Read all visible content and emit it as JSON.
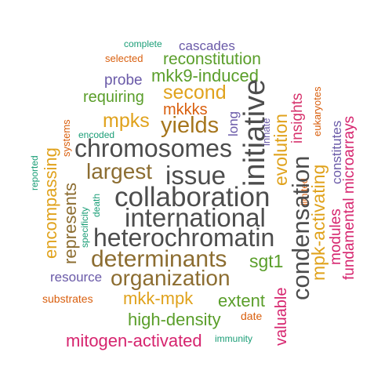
{
  "palette": {
    "dark_gray": "#4d4d4d",
    "brown": "#8c6d31",
    "gold": "#e0a21c",
    "green": "#5a9e2a",
    "magenta": "#d6336c",
    "pink": "#d6246e",
    "purple": "#6a5aa8",
    "orange": "#d95f0e",
    "teal": "#1b9e77",
    "light_brown": "#a6761d"
  },
  "words": [
    "complete",
    "cascades",
    "selected",
    "reconstitution",
    "probe",
    "mkk9-induced",
    "requiring",
    "second",
    "eukaryotes",
    "mkkks",
    "mpks",
    "yields",
    "initiative",
    "long",
    "innate",
    "evolution",
    "insights",
    "constitutes",
    "fundamental microarrays",
    "encoded",
    "systems",
    "chromosomes",
    "reported",
    "encompassing",
    "represents",
    "largest",
    "issue",
    "collaboration",
    "international",
    "death",
    "specificity",
    "limited",
    "condensation",
    "mpk-activating",
    "modules",
    "heterochromatin",
    "determinants",
    "sgt1",
    "resource",
    "organization",
    "substrates",
    "mkk-mpk",
    "extent",
    "valuable",
    "date",
    "high-density",
    "mitogen-activated",
    "immunity"
  ]
}
